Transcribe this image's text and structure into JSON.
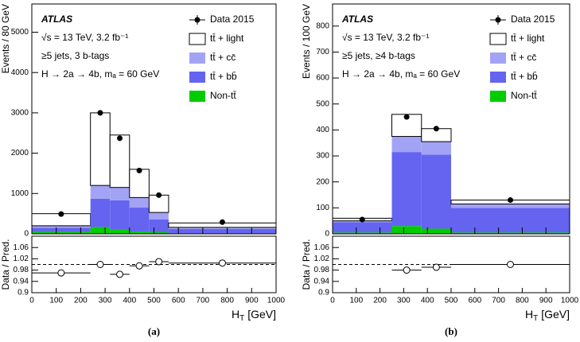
{
  "chart_data": [
    {
      "type": "histogram",
      "caption": "(a)",
      "ylabel": "Events / 80 GeV",
      "xlabel_symbol": "H",
      "xlabel_subscript": "T",
      "xlabel_unit": "[GeV]",
      "annotations": [
        "ATLAS",
        "√s = 13 TeV, 3.2 fb⁻¹",
        "≥5 jets, 3 b-tags",
        "H → 2a → 4b, mₐ = 60 GeV"
      ],
      "bins": [
        0,
        240,
        320,
        400,
        480,
        560,
        1000
      ],
      "series": [
        {
          "name": "tt̄ + light",
          "color": "#ffffff",
          "values": [
            300,
            1800,
            1300,
            700,
            430,
            110
          ]
        },
        {
          "name": "tt̄ + cc̄",
          "color": "#a3a3f5",
          "values": [
            50,
            330,
            320,
            250,
            170,
            40
          ]
        },
        {
          "name": "tt̄ + bb̄",
          "color": "#6464f0",
          "values": [
            100,
            700,
            730,
            590,
            320,
            100
          ]
        },
        {
          "name": "Non-tt̄",
          "color": "#00cc00",
          "values": [
            50,
            170,
            100,
            60,
            40,
            20
          ]
        }
      ],
      "data": {
        "name": "Data 2015",
        "values": [
          490,
          3000,
          2370,
          1570,
          960,
          290
        ]
      },
      "xlim": [
        0,
        1000
      ],
      "xticks": [
        0,
        100,
        200,
        300,
        400,
        500,
        600,
        700,
        800,
        900,
        1000
      ],
      "ylim": [
        0,
        5700
      ],
      "yticks": [
        0,
        1000,
        2000,
        3000,
        4000,
        5000
      ],
      "ratio": {
        "ylabel": "Data / Pred.",
        "values": [
          0.97,
          1.0,
          0.965,
          0.995,
          1.01,
          1.005
        ],
        "reference": 1,
        "ylim": [
          0.9,
          1.1
        ],
        "yticks": [
          0.9,
          0.94,
          0.98,
          1.02,
          1.06
        ]
      }
    },
    {
      "type": "histogram",
      "caption": "(b)",
      "ylabel": "Events / 100 GeV",
      "xlabel_symbol": "H",
      "xlabel_subscript": "T",
      "xlabel_unit": "[GeV]",
      "annotations": [
        "ATLAS",
        "√s = 13 TeV, 3.2 fb⁻¹",
        "≥5 jets, ≥4 b-tags",
        "H → 2a → 4b, mₐ = 60 GeV"
      ],
      "bins": [
        0,
        250,
        375,
        500,
        1000
      ],
      "series": [
        {
          "name": "tt̄ + light",
          "color": "#ffffff",
          "values": [
            10,
            85,
            50,
            15
          ]
        },
        {
          "name": "tt̄ + cc̄",
          "color": "#a3a3f5",
          "values": [
            5,
            60,
            50,
            15
          ]
        },
        {
          "name": "tt̄ + bb̄",
          "color": "#6464f0",
          "values": [
            40,
            285,
            285,
            95
          ]
        },
        {
          "name": "Non-tt̄",
          "color": "#00cc00",
          "values": [
            5,
            30,
            20,
            5
          ]
        }
      ],
      "data": {
        "name": "Data 2015",
        "values": [
          55,
          450,
          405,
          130
        ]
      },
      "xlim": [
        0,
        1000
      ],
      "xticks": [
        0,
        100,
        200,
        300,
        400,
        500,
        600,
        700,
        800,
        900,
        1000
      ],
      "ylim": [
        0,
        885
      ],
      "yticks": [
        0,
        100,
        200,
        300,
        400,
        500,
        600,
        700,
        800
      ],
      "ratio": {
        "ylabel": "Data / Pred.",
        "values": [
          null,
          0.98,
          0.99,
          1.0
        ],
        "reference": 1,
        "ylim": [
          0.9,
          1.1
        ],
        "yticks": [
          0.9,
          0.94,
          0.98,
          1.02,
          1.06
        ]
      }
    }
  ]
}
